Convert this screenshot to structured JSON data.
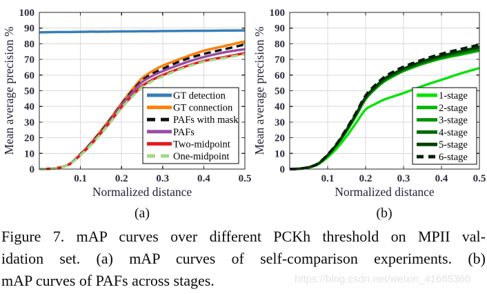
{
  "figure": {
    "sublabel_a": "(a)",
    "sublabel_b": "(b)",
    "caption_lines": [
      "Figure 7. mAP curves over different PCKh threshold on MPII val-",
      "idation set.  (a) mAP curves of self-comparison experiments.  (b)",
      "mAP curves of PAFs across stages."
    ],
    "watermark": "https://blog.csdn.net/weixin_41665360"
  },
  "colors": {
    "axis": "#262626",
    "grid": "#d8d8d8",
    "tick_text": "#2a2a3c",
    "legend_border": "#000000"
  },
  "chart_data": [
    {
      "id": "a",
      "type": "line",
      "title": "",
      "xlabel": "Normalized distance",
      "ylabel": "Mean average precision %",
      "xlim": [
        0,
        0.5
      ],
      "ylim": [
        0,
        100
      ],
      "xticks": [
        0.1,
        0.2,
        0.3,
        0.4,
        0.5
      ],
      "xtick_labels": [
        "0.1",
        "0.2",
        "0.3",
        "0.4",
        "0.5"
      ],
      "yticks": [
        0,
        10,
        20,
        30,
        40,
        50,
        60,
        70,
        80,
        90,
        100
      ],
      "grid": true,
      "legend_position": "inside-lower-right",
      "x": [
        0,
        0.025,
        0.05,
        0.075,
        0.1,
        0.125,
        0.15,
        0.175,
        0.2,
        0.225,
        0.25,
        0.275,
        0.3,
        0.35,
        0.4,
        0.45,
        0.5
      ],
      "series": [
        {
          "name": "GT detection",
          "color": "#377eb8",
          "dashed": false,
          "width": 3.5,
          "values": [
            87.3,
            87.4,
            87.5,
            87.5,
            87.6,
            87.7,
            87.7,
            87.8,
            87.9,
            87.9,
            88.0,
            88.0,
            88.1,
            88.2,
            88.3,
            88.4,
            88.5
          ]
        },
        {
          "name": "GT connection",
          "color": "#ff7f00",
          "dashed": false,
          "width": 3.5,
          "values": [
            0,
            0.2,
            1,
            3.5,
            9.5,
            16.5,
            24.5,
            33,
            42,
            50.5,
            58,
            62.5,
            66,
            71,
            75.5,
            78.5,
            81.5
          ]
        },
        {
          "name": "PAFs with mask",
          "color": "#111111",
          "dashed": true,
          "width": 3.5,
          "values": [
            0,
            0.2,
            1,
            3.5,
            9.5,
            16.3,
            24,
            32.5,
            41.5,
            49.5,
            56.5,
            60.8,
            64,
            69.5,
            73.5,
            76.5,
            79.5
          ]
        },
        {
          "name": "PAFs",
          "color": "#984ea3",
          "dashed": false,
          "width": 3.5,
          "values": [
            0,
            0.2,
            1,
            3.4,
            9.2,
            16,
            23.5,
            32,
            41,
            48.5,
            55.5,
            59.5,
            62.5,
            67.5,
            71.5,
            74.5,
            76.5
          ]
        },
        {
          "name": "Two-midpoint",
          "color": "#e41a1c",
          "dashed": false,
          "width": 3.5,
          "values": [
            0,
            0.2,
            1,
            3.3,
            9,
            15.5,
            23,
            31,
            39.5,
            46.5,
            53,
            57,
            60,
            65,
            69,
            71.5,
            74
          ]
        },
        {
          "name": "One-midpoint",
          "color": "#a2d884",
          "dashed": true,
          "width": 3.5,
          "values": [
            0,
            0.2,
            1,
            3.3,
            8.8,
            15.2,
            22.5,
            30.5,
            39,
            46,
            52.2,
            56.2,
            59.2,
            64.5,
            68.5,
            71,
            73.3
          ]
        }
      ]
    },
    {
      "id": "b",
      "type": "line",
      "title": "",
      "xlabel": "Normalized distance",
      "ylabel": "Mean average precision %",
      "xlim": [
        0,
        0.5
      ],
      "ylim": [
        0,
        100
      ],
      "xticks": [
        0.1,
        0.2,
        0.3,
        0.4,
        0.5
      ],
      "xtick_labels": [
        "0.1",
        "0.2",
        "0.3",
        "0.4",
        "0.5"
      ],
      "yticks": [
        0,
        10,
        20,
        30,
        40,
        50,
        60,
        70,
        80,
        90,
        100
      ],
      "grid": true,
      "legend_position": "inside-lower-right",
      "x": [
        0,
        0.025,
        0.05,
        0.075,
        0.1,
        0.125,
        0.15,
        0.175,
        0.2,
        0.225,
        0.25,
        0.275,
        0.3,
        0.35,
        0.4,
        0.45,
        0.5
      ],
      "series": [
        {
          "name": "1-stage",
          "color": "#00e400",
          "dashed": false,
          "width": 3.4,
          "values": [
            0,
            0.2,
            1,
            3,
            7.5,
            13.5,
            21,
            29.5,
            38,
            41.5,
            44.5,
            46.5,
            48.5,
            53,
            57,
            61,
            64.5
          ]
        },
        {
          "name": "2-stage",
          "color": "#00b800",
          "dashed": false,
          "width": 3.4,
          "values": [
            0,
            0.2,
            1,
            3.2,
            8.5,
            15.5,
            24,
            34,
            44.5,
            51,
            56,
            59.5,
            62.5,
            67,
            70.5,
            73,
            75.5
          ]
        },
        {
          "name": "3-stage",
          "color": "#009100",
          "dashed": false,
          "width": 3.4,
          "values": [
            0,
            0.2,
            1.1,
            3.3,
            8.7,
            15.8,
            24.5,
            34.5,
            45,
            51.5,
            56.6,
            60,
            63,
            67.6,
            71,
            73.8,
            76.3
          ]
        },
        {
          "name": "4-stage",
          "color": "#006a00",
          "dashed": false,
          "width": 3.4,
          "values": [
            0,
            0.2,
            1.1,
            3.4,
            8.8,
            16,
            25,
            35,
            45.5,
            52,
            57.2,
            60.6,
            63.6,
            68.2,
            71.8,
            74.6,
            77.2
          ]
        },
        {
          "name": "5-stage",
          "color": "#004200",
          "dashed": false,
          "width": 3.4,
          "values": [
            0,
            0.2,
            1.2,
            3.5,
            9,
            16.2,
            25.3,
            35.4,
            46,
            52.5,
            57.8,
            61.2,
            64.2,
            68.8,
            72.4,
            75.3,
            78
          ]
        },
        {
          "name": "6-stage",
          "color": "#0d1d0d",
          "dashed": true,
          "width": 4,
          "values": [
            0,
            0.2,
            1.2,
            3.6,
            9.2,
            16.5,
            25.8,
            36,
            46.8,
            53.5,
            58.8,
            62.3,
            65.3,
            69.8,
            73.5,
            76.5,
            79.3
          ]
        }
      ]
    }
  ]
}
